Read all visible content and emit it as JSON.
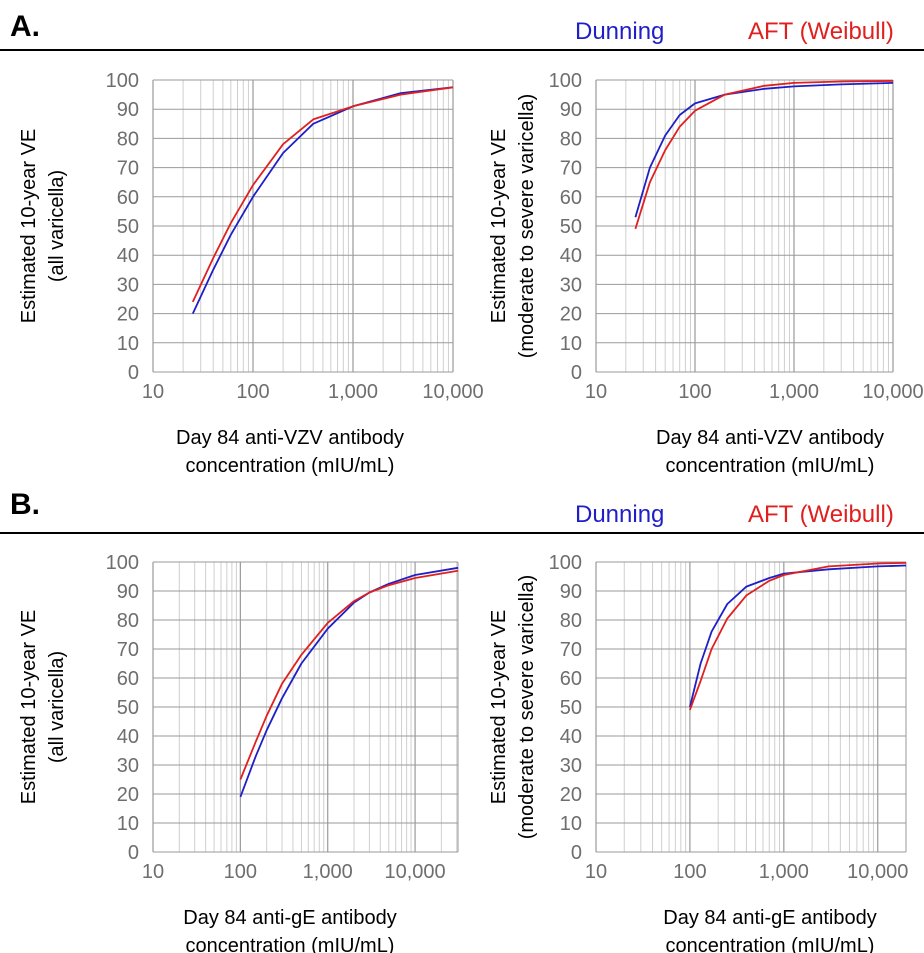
{
  "panels": [
    {
      "label": "A.",
      "legend": [
        {
          "name": "Dunning",
          "color": "#1f1fc8"
        },
        {
          "name": "AFT (Weibull)",
          "color": "#e0201e"
        }
      ]
    },
    {
      "label": "B.",
      "legend": [
        {
          "name": "Dunning",
          "color": "#1f1fc8"
        },
        {
          "name": "AFT (Weibull)",
          "color": "#e0201e"
        }
      ]
    }
  ],
  "chart_data": [
    {
      "type": "line",
      "xscale": "log",
      "xlim": [
        10,
        10000
      ],
      "ylim": [
        0,
        100
      ],
      "xticks": [
        "10",
        "100",
        "1,000",
        "10,000"
      ],
      "yticks": [
        "0",
        "10",
        "20",
        "30",
        "40",
        "50",
        "60",
        "70",
        "80",
        "90",
        "100"
      ],
      "xlabel": [
        "Day 84 anti-VZV antibody",
        "concentration (mIU/mL)"
      ],
      "ylabel": [
        "Estimated 10-year VE",
        "(all varicella)"
      ],
      "grid": true,
      "series": [
        {
          "name": "Dunning",
          "color": "#1f1fc8",
          "x": [
            25,
            40,
            60,
            100,
            200,
            400,
            1000,
            3000,
            10000
          ],
          "y": [
            20,
            35,
            47,
            60,
            75,
            85,
            91,
            95.5,
            97.5
          ]
        },
        {
          "name": "AFT (Weibull)",
          "color": "#e0201e",
          "x": [
            25,
            40,
            60,
            100,
            200,
            400,
            1000,
            3000,
            10000
          ],
          "y": [
            24,
            39,
            51,
            64,
            78,
            86.5,
            91,
            95,
            97.5
          ]
        }
      ]
    },
    {
      "type": "line",
      "xscale": "log",
      "xlim": [
        10,
        10000
      ],
      "ylim": [
        0,
        100
      ],
      "xticks": [
        "10",
        "100",
        "1,000",
        "10,000"
      ],
      "yticks": [
        "0",
        "10",
        "20",
        "30",
        "40",
        "50",
        "60",
        "70",
        "80",
        "90",
        "100"
      ],
      "xlabel": [
        "Day 84 anti-VZV antibody",
        "concentration (mIU/mL)"
      ],
      "ylabel": [
        "Estimated 10-year VE",
        "(moderate to severe varicella)"
      ],
      "grid": true,
      "series": [
        {
          "name": "Dunning",
          "color": "#1f1fc8",
          "x": [
            25,
            35,
            50,
            70,
            100,
            200,
            500,
            1000,
            3000,
            10000
          ],
          "y": [
            53,
            70,
            81,
            88,
            92,
            95,
            97,
            97.8,
            98.5,
            99
          ]
        },
        {
          "name": "AFT (Weibull)",
          "color": "#e0201e",
          "x": [
            25,
            35,
            50,
            70,
            100,
            200,
            500,
            1000,
            3000,
            10000
          ],
          "y": [
            49,
            65,
            76,
            84,
            89.5,
            95,
            98,
            99,
            99.5,
            99.7
          ]
        }
      ]
    },
    {
      "type": "line",
      "xscale": "log",
      "xlim": [
        10,
        31000
      ],
      "ylim": [
        0,
        100
      ],
      "xticks": [
        "10",
        "100",
        "1,000",
        "10,000"
      ],
      "yticks": [
        "0",
        "10",
        "20",
        "30",
        "40",
        "50",
        "60",
        "70",
        "80",
        "90",
        "100"
      ],
      "xlabel": [
        "Day 84 anti-gE antibody",
        "concentration (mIU/mL)"
      ],
      "ylabel": [
        "Estimated 10-year VE",
        "(all varicella)"
      ],
      "grid": true,
      "series": [
        {
          "name": "Dunning",
          "color": "#1f1fc8",
          "x": [
            100,
            150,
            200,
            300,
            500,
            1000,
            2000,
            3000,
            5000,
            10000,
            31000
          ],
          "y": [
            19,
            33,
            42,
            53,
            65,
            77,
            86,
            89.5,
            92.5,
            95.5,
            98
          ]
        },
        {
          "name": "AFT (Weibull)",
          "color": "#e0201e",
          "x": [
            100,
            150,
            200,
            300,
            500,
            1000,
            2000,
            3000,
            5000,
            10000,
            31000
          ],
          "y": [
            25,
            38,
            47,
            58,
            68,
            79,
            86.5,
            89.5,
            92,
            94.5,
            97
          ]
        }
      ]
    },
    {
      "type": "line",
      "xscale": "log",
      "xlim": [
        10,
        20000
      ],
      "ylim": [
        0,
        100
      ],
      "xticks": [
        "10",
        "100",
        "1,000",
        "10,000"
      ],
      "yticks": [
        "0",
        "10",
        "20",
        "30",
        "40",
        "50",
        "60",
        "70",
        "80",
        "90",
        "100"
      ],
      "xlabel": [
        "Day 84 anti-gE antibody",
        "concentration (mIU/mL)"
      ],
      "ylabel": [
        "Estimated 10-year VE",
        "(moderate to severe varicella)"
      ],
      "grid": true,
      "series": [
        {
          "name": "Dunning",
          "color": "#1f1fc8",
          "x": [
            100,
            130,
            170,
            250,
            400,
            700,
            1000,
            3000,
            10000,
            20000
          ],
          "y": [
            50,
            65,
            76,
            85.5,
            91.5,
            94.5,
            96,
            97.5,
            98.5,
            98.8
          ]
        },
        {
          "name": "AFT (Weibull)",
          "color": "#e0201e",
          "x": [
            100,
            130,
            170,
            250,
            400,
            700,
            1000,
            3000,
            10000,
            20000
          ],
          "y": [
            49,
            59,
            70,
            80.5,
            88.5,
            93.5,
            95.5,
            98.5,
            99.5,
            99.7
          ]
        }
      ]
    }
  ]
}
